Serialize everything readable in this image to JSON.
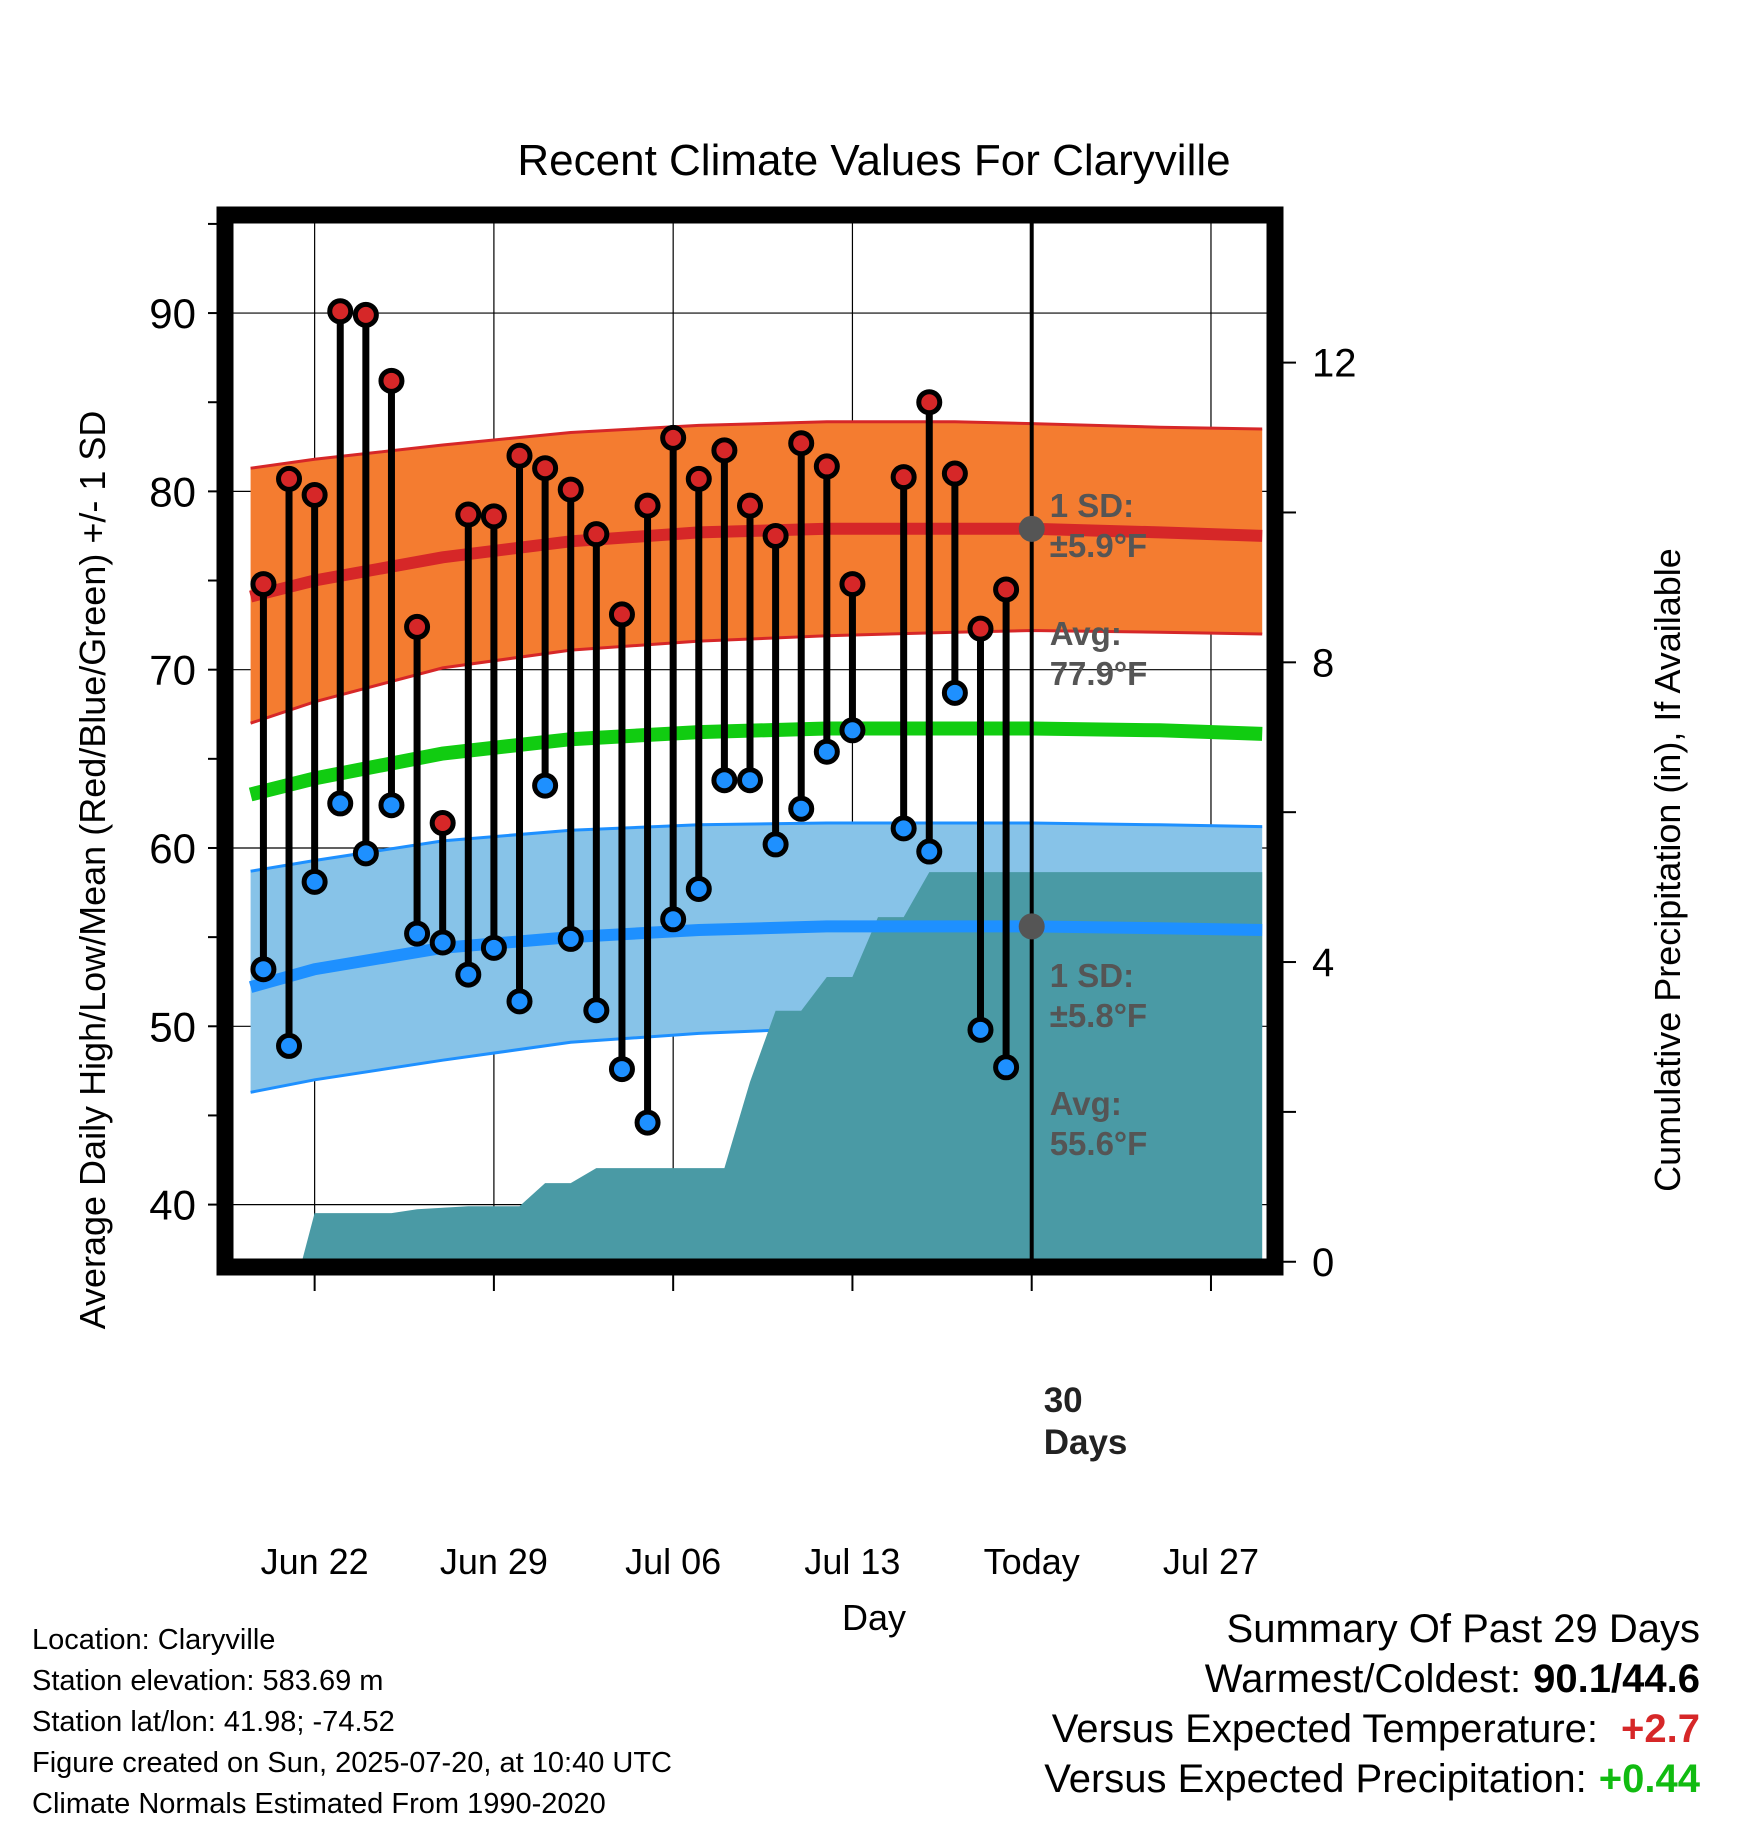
{
  "chart_data": {
    "type": "line",
    "title": "Recent Climate Values For Claryville",
    "xlabel": "Day",
    "ylabel": "Average Daily High/Low/Mean (Red/Blue/Green) +/- 1 SD",
    "y2label": "Cumulative Precipitation (in), If Available",
    "xlim": [
      -3.5,
      37.5
    ],
    "ylim": [
      36.5,
      95.5
    ],
    "y2lim": [
      -0.07,
      13.97
    ],
    "x_ticks": [
      0,
      7,
      14,
      21,
      28,
      35
    ],
    "x_tick_labels": [
      "Jun 22",
      "Jun 29",
      "Jul 06",
      "Jul 13",
      "Today",
      "Jul 27"
    ],
    "y_ticks": [
      40,
      50,
      60,
      70,
      80,
      90
    ],
    "y2_ticks": [
      0,
      4,
      8,
      12
    ],
    "grid": true,
    "today_x": 28,
    "today_label": "30\nDays",
    "series": [
      {
        "name": "High",
        "color": "#d62728",
        "x": [
          -2,
          -1,
          0,
          1,
          2,
          3,
          4,
          5,
          6,
          7,
          8,
          9,
          10,
          11,
          12,
          13,
          14,
          15,
          16,
          17,
          18,
          19,
          20,
          21,
          22,
          23,
          24,
          25,
          26,
          27
        ],
        "values": [
          74.8,
          80.7,
          79.8,
          90.1,
          89.9,
          86.2,
          72.4,
          61.4,
          78.7,
          78.6,
          82.0,
          81.3,
          80.1,
          77.6,
          73.1,
          79.2,
          83.0,
          80.7,
          82.3,
          79.2,
          77.5,
          82.7,
          81.4,
          74.8,
          null,
          80.8,
          85.0,
          81.0,
          72.3,
          74.5
        ]
      },
      {
        "name": "Low",
        "color": "#1e90ff",
        "x": [
          -2,
          -1,
          0,
          1,
          2,
          3,
          4,
          5,
          6,
          7,
          8,
          9,
          10,
          11,
          12,
          13,
          14,
          15,
          16,
          17,
          18,
          19,
          20,
          21,
          22,
          23,
          24,
          25,
          26,
          27
        ],
        "values": [
          53.2,
          48.9,
          58.1,
          62.5,
          59.7,
          62.4,
          55.2,
          54.7,
          52.9,
          54.4,
          51.4,
          63.5,
          54.9,
          50.9,
          47.6,
          44.6,
          56.0,
          57.7,
          63.8,
          63.8,
          60.2,
          62.2,
          65.4,
          66.6,
          null,
          61.1,
          59.8,
          68.7,
          49.8,
          47.7
        ]
      },
      {
        "name": "Normal High",
        "x": [
          -2.5,
          0,
          5,
          10,
          15,
          20,
          25,
          28,
          33,
          37
        ],
        "values": [
          74.1,
          75.0,
          76.3,
          77.2,
          77.7,
          77.9,
          77.9,
          77.9,
          77.7,
          77.5
        ]
      },
      {
        "name": "Normal High SD Upper",
        "x": [
          -2.5,
          0,
          5,
          10,
          15,
          20,
          25,
          28,
          33,
          37
        ],
        "values": [
          81.3,
          81.8,
          82.6,
          83.3,
          83.7,
          83.9,
          83.9,
          83.8,
          83.6,
          83.5
        ]
      },
      {
        "name": "Normal High SD Lower",
        "x": [
          -2.5,
          0,
          5,
          10,
          15,
          20,
          25,
          28,
          33,
          37
        ],
        "values": [
          67.0,
          68.2,
          70.1,
          71.1,
          71.6,
          71.9,
          72.1,
          72.2,
          72.1,
          72.0
        ]
      },
      {
        "name": "Normal Mean",
        "color": "#11cc11",
        "x": [
          -2.5,
          0,
          5,
          10,
          15,
          20,
          25,
          28,
          33,
          37
        ],
        "values": [
          63.0,
          63.9,
          65.3,
          66.1,
          66.5,
          66.7,
          66.7,
          66.7,
          66.6,
          66.4
        ]
      },
      {
        "name": "Normal Low",
        "x": [
          -2.5,
          0,
          5,
          10,
          15,
          20,
          25,
          28,
          33,
          37
        ],
        "values": [
          52.2,
          53.2,
          54.4,
          55.0,
          55.4,
          55.6,
          55.6,
          55.6,
          55.5,
          55.4
        ]
      },
      {
        "name": "Normal Low SD Upper",
        "x": [
          -2.5,
          0,
          5,
          10,
          15,
          20,
          25,
          28,
          33,
          37
        ],
        "values": [
          58.7,
          59.3,
          60.4,
          61.0,
          61.3,
          61.4,
          61.4,
          61.4,
          61.3,
          61.2
        ]
      },
      {
        "name": "Normal Low SD Lower",
        "x": [
          -2.5,
          0,
          5,
          10,
          15,
          20,
          25,
          28,
          33,
          37
        ],
        "values": [
          46.3,
          47.0,
          48.1,
          49.1,
          49.6,
          49.9,
          50.0,
          50.0,
          50.0,
          50.0
        ]
      },
      {
        "name": "Cumulative Precipitation",
        "color": "#4a9aa5",
        "axis": "y2",
        "x": [
          -2.5,
          -0.5,
          0,
          3,
          4,
          5,
          6,
          7,
          8,
          9,
          10,
          11,
          12,
          13,
          14,
          15,
          16,
          17,
          18,
          19,
          20,
          21,
          22,
          23,
          24,
          25,
          26,
          27,
          28,
          37
        ],
        "values": [
          0,
          0,
          0.65,
          0.65,
          0.7,
          0.72,
          0.74,
          0.74,
          0.74,
          1.05,
          1.05,
          1.25,
          1.25,
          1.25,
          1.25,
          1.25,
          1.25,
          2.4,
          3.35,
          3.35,
          3.8,
          3.8,
          4.6,
          4.6,
          5.2,
          5.2,
          5.2,
          5.2,
          5.2,
          5.2
        ]
      }
    ],
    "annotations": {
      "high_sd_label": "1 SD:",
      "high_sd_value": "±5.9°F",
      "high_avg_label": "Avg:",
      "high_avg_value": "77.9°F",
      "low_sd_label": "1 SD:",
      "low_sd_value": "±5.8°F",
      "low_avg_label": "Avg:",
      "low_avg_value": "55.6°F"
    }
  },
  "info": {
    "location": "Location: Claryville",
    "elevation": "Station elevation: 583.69 m",
    "latlon": "Station lat/lon: 41.98; -74.52",
    "created": "Figure created on Sun, 2025-07-20, at 10:40 UTC",
    "normals": "Climate Normals Estimated From 1990-2020"
  },
  "summary": {
    "title": "Summary Of Past 29 Days",
    "warmest_label": "Warmest/Coldest:",
    "warmest_value": "90.1/44.6",
    "temp_label": "Versus Expected Temperature:",
    "temp_value": "+2.7",
    "precip_label": "Versus Expected Precipitation:",
    "precip_value": "+0.44",
    "colors": {
      "temp": "#d62728",
      "precip": "#11bb11"
    }
  }
}
